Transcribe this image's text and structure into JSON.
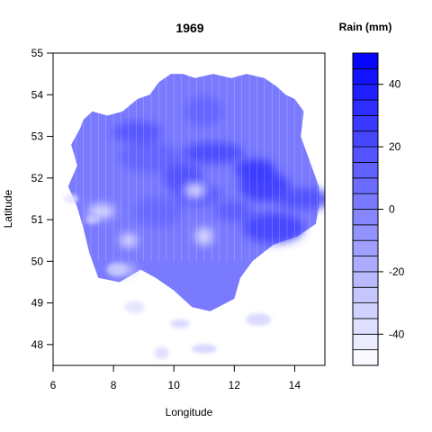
{
  "chart_data": {
    "type": "heatmap",
    "plot_style": "filled contour map",
    "title": "1969",
    "xlabel": "Longitude",
    "ylabel": "Latitude",
    "xlim": [
      6,
      15
    ],
    "ylim": [
      47.5,
      55
    ],
    "x_ticks": [
      "6",
      "8",
      "10",
      "12",
      "14"
    ],
    "y_ticks": [
      "48",
      "49",
      "50",
      "51",
      "52",
      "53",
      "54",
      "55"
    ],
    "colorkey": {
      "title": "Rain (mm)",
      "range": [
        -50,
        50
      ],
      "step": 5,
      "ticks": [
        "-40",
        "-20",
        "0",
        "20",
        "40"
      ],
      "low_color": "#ffffff",
      "high_color": "#0000ff"
    },
    "region_outline_lonlat": [
      [
        7.0,
        53.4
      ],
      [
        7.3,
        53.6
      ],
      [
        7.8,
        53.5
      ],
      [
        8.3,
        53.6
      ],
      [
        8.8,
        53.9
      ],
      [
        9.2,
        54.0
      ],
      [
        9.5,
        54.3
      ],
      [
        9.9,
        54.5
      ],
      [
        10.3,
        54.5
      ],
      [
        10.7,
        54.4
      ],
      [
        11.3,
        54.5
      ],
      [
        11.9,
        54.4
      ],
      [
        12.4,
        54.5
      ],
      [
        13.0,
        54.4
      ],
      [
        13.4,
        54.2
      ],
      [
        13.7,
        54.0
      ],
      [
        14.0,
        53.9
      ],
      [
        14.3,
        53.6
      ],
      [
        14.2,
        53.0
      ],
      [
        14.4,
        52.6
      ],
      [
        14.6,
        52.2
      ],
      [
        14.8,
        51.8
      ],
      [
        14.8,
        51.3
      ],
      [
        14.7,
        50.9
      ],
      [
        14.1,
        50.6
      ],
      [
        13.3,
        50.4
      ],
      [
        12.6,
        50.0
      ],
      [
        12.2,
        49.6
      ],
      [
        12.0,
        49.1
      ],
      [
        11.2,
        48.8
      ],
      [
        10.6,
        48.9
      ],
      [
        10.0,
        49.3
      ],
      [
        9.4,
        49.6
      ],
      [
        8.9,
        49.8
      ],
      [
        8.2,
        49.5
      ],
      [
        7.5,
        49.6
      ],
      [
        7.2,
        50.2
      ],
      [
        7.0,
        50.8
      ],
      [
        6.8,
        51.3
      ],
      [
        6.5,
        51.8
      ],
      [
        6.8,
        52.3
      ],
      [
        6.6,
        52.8
      ],
      [
        6.9,
        53.2
      ]
    ],
    "wet_cells": [
      {
        "lon": 12.7,
        "lat": 52.2,
        "rain": 30
      },
      {
        "lon": 13.0,
        "lat": 51.8,
        "rain": 28
      },
      {
        "lon": 11.3,
        "lat": 52.6,
        "rain": 22
      },
      {
        "lon": 10.3,
        "lat": 52.0,
        "rain": 20
      },
      {
        "lon": 8.8,
        "lat": 53.1,
        "rain": 18
      },
      {
        "lon": 13.3,
        "lat": 50.8,
        "rain": 25
      },
      {
        "lon": 12.0,
        "lat": 51.2,
        "rain": 15
      },
      {
        "lon": 9.5,
        "lat": 51.2,
        "rain": 10
      },
      {
        "lon": 14.3,
        "lat": 51.5,
        "rain": 20
      },
      {
        "lon": 11.0,
        "lat": 53.6,
        "rain": 12
      },
      {
        "lon": 10.8,
        "lat": 51.6,
        "rain": 15
      },
      {
        "lon": 9.2,
        "lat": 52.5,
        "rain": 12
      }
    ],
    "dry_cells": [
      {
        "lon": 10.7,
        "lat": 51.7,
        "rain": -40
      },
      {
        "lon": 7.6,
        "lat": 51.2,
        "rain": -35
      },
      {
        "lon": 11.0,
        "lat": 50.6,
        "rain": -35
      },
      {
        "lon": 8.3,
        "lat": 49.8,
        "rain": -30
      },
      {
        "lon": 8.5,
        "lat": 50.5,
        "rain": -35
      }
    ],
    "scattered_patches": [
      {
        "lon": 7.3,
        "lat": 51.0,
        "rain": -30
      },
      {
        "lon": 8.1,
        "lat": 49.8,
        "rain": -30
      },
      {
        "lon": 11.0,
        "lat": 47.9,
        "rain": -30
      },
      {
        "lon": 9.6,
        "lat": 47.8,
        "rain": -35
      },
      {
        "lon": 10.2,
        "lat": 48.5,
        "rain": -32
      },
      {
        "lon": 12.8,
        "lat": 48.6,
        "rain": -32
      },
      {
        "lon": 6.6,
        "lat": 51.5,
        "rain": -38
      },
      {
        "lon": 8.7,
        "lat": 48.9,
        "rain": -38
      }
    ]
  }
}
